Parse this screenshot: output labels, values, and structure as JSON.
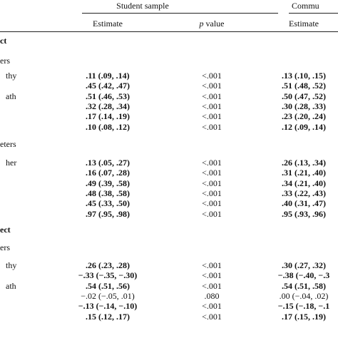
{
  "header": {
    "groups": [
      "Student sample",
      "Commu"
    ],
    "columns": [
      "Estimate",
      {
        "symbol": "p",
        "text": "value"
      },
      "Estimate"
    ]
  },
  "sections": [
    {
      "title": "ct",
      "subsections": [
        {
          "title": "ers",
          "rows": [
            {
              "label": "thy",
              "cells": [
                ".11 (.09, .14)",
                "<.001",
                ".13 (.10, .15)"
              ]
            },
            {
              "cells": [
                ".45 (.42, .47)",
                "<.001",
                ".51 (.48, .52)"
              ]
            },
            {
              "label": "ath",
              "cells": [
                ".51 (.46, .53)",
                "<.001",
                ".50 (.47, .52)"
              ]
            },
            {
              "cells": [
                ".32 (.28, .34)",
                "<.001",
                ".30 (.28, .33)"
              ]
            },
            {
              "cells": [
                ".17 (.14, .19)",
                "<.001",
                ".23 (.20, .24)"
              ]
            },
            {
              "cells": [
                ".10 (.08, .12)",
                "<.001",
                ".12 (.09, .14)"
              ]
            }
          ]
        },
        {
          "title": "eters",
          "rows": [
            {
              "label": "her",
              "cells": [
                ".13 (.05, .27)",
                "<.001",
                ".26 (.13, .34)"
              ]
            },
            {
              "cells": [
                ".16 (.07, .28)",
                "<.001",
                ".31 (.21, .40)"
              ]
            },
            {
              "cells": [
                ".49 (.39, .58)",
                "<.001",
                ".34 (.21, .40)"
              ]
            },
            {
              "cells": [
                ".48 (.38, .58)",
                "<.001",
                ".33 (.22, .43)"
              ]
            },
            {
              "cells": [
                ".45 (.33, .50)",
                "<.001",
                ".40 (.31, .47)"
              ]
            },
            {
              "cells": [
                ".97 (.95, .98)",
                "<.001",
                ".95 (.93, .96)"
              ]
            }
          ]
        }
      ]
    },
    {
      "title": "ect",
      "subsections": [
        {
          "title": "ers",
          "rows": [
            {
              "label": "thy",
              "cells": [
                ".26 (.23, .28)",
                "<.001",
                ".30 (.27, .32)"
              ]
            },
            {
              "cells": [
                "−.33 (−.35, −.30)",
                "<.001",
                "−.38 (−.40, −.3"
              ]
            },
            {
              "label": "ath",
              "cells": [
                ".54 (.51, .56)",
                "<.001",
                ".54 (.51, .58)"
              ]
            },
            {
              "cells": [
                "−.02 (−.05, .01)",
                ".080",
                ".00 (−.04, .02)"
              ]
            },
            {
              "cells": [
                "−.13 (−.14, −.10)",
                "<.001",
                "−.15 (−.18, −.1"
              ]
            },
            {
              "cells": [
                ".15 (.12, .17)",
                "<.001",
                ".17 (.15, .19)"
              ]
            }
          ]
        }
      ]
    }
  ]
}
